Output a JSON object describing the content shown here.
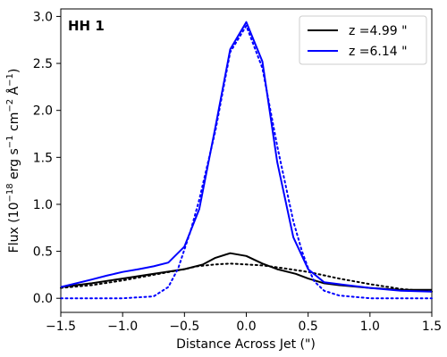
{
  "chart_data": {
    "type": "line",
    "panel_label": "HH 1",
    "xlabel": "Distance Across Jet (\")",
    "ylabel": {
      "main": "Flux (10",
      "exp1": "−18",
      "mid1": " erg s",
      "exp2": "−1",
      "mid2": " cm",
      "exp3": "−2",
      "mid3": " Å",
      "exp4": "−1",
      "end": ")"
    },
    "xlim": [
      -1.5,
      1.5
    ],
    "ylim": [
      -0.15,
      3.08
    ],
    "xticks": [
      -1.5,
      -1.0,
      -0.5,
      0.0,
      0.5,
      1.0,
      1.5
    ],
    "xtick_labels": [
      "−1.5",
      "−1.0",
      "−0.5",
      "0.0",
      "0.5",
      "1.0",
      "1.5"
    ],
    "yticks": [
      0.0,
      0.5,
      1.0,
      1.5,
      2.0,
      2.5,
      3.0
    ],
    "ytick_labels": [
      "0.0",
      "0.5",
      "1.0",
      "1.5",
      "2.0",
      "2.5",
      "3.0"
    ],
    "grid": false,
    "legend_position": "top-right",
    "series": [
      {
        "name": "z =4.99 \"",
        "color": "#000000",
        "style": "solid",
        "x": [
          -1.5,
          -1.25,
          -1.0,
          -0.9,
          -0.8,
          -0.65,
          -0.5,
          -0.35,
          -0.25,
          -0.13,
          0.0,
          0.13,
          0.25,
          0.4,
          0.5,
          0.63,
          0.75,
          1.0,
          1.25,
          1.5
        ],
        "y": [
          0.12,
          0.16,
          0.21,
          0.23,
          0.25,
          0.28,
          0.31,
          0.36,
          0.43,
          0.48,
          0.45,
          0.37,
          0.31,
          0.26,
          0.21,
          0.16,
          0.14,
          0.11,
          0.09,
          0.09
        ]
      },
      {
        "name": "",
        "color": "#000000",
        "style": "dotted",
        "x": [
          -1.5,
          -1.25,
          -1.0,
          -0.75,
          -0.5,
          -0.4,
          -0.25,
          -0.13,
          0.0,
          0.13,
          0.25,
          0.5,
          0.75,
          1.0,
          1.25,
          1.5
        ],
        "y": [
          0.11,
          0.14,
          0.19,
          0.25,
          0.31,
          0.34,
          0.36,
          0.37,
          0.36,
          0.35,
          0.33,
          0.28,
          0.21,
          0.15,
          0.1,
          0.07
        ]
      },
      {
        "name": "z =6.14 \"",
        "color": "#0000ff",
        "style": "solid",
        "x": [
          -1.5,
          -1.25,
          -1.13,
          -1.0,
          -0.87,
          -0.75,
          -0.63,
          -0.5,
          -0.38,
          -0.25,
          -0.13,
          0.0,
          0.13,
          0.25,
          0.38,
          0.5,
          0.63,
          0.75,
          1.0,
          1.25,
          1.5
        ],
        "y": [
          0.12,
          0.2,
          0.24,
          0.28,
          0.31,
          0.34,
          0.38,
          0.55,
          0.95,
          1.82,
          2.65,
          2.94,
          2.52,
          1.45,
          0.65,
          0.31,
          0.17,
          0.15,
          0.11,
          0.08,
          0.07
        ]
      },
      {
        "name": "",
        "color": "#0000ff",
        "style": "dotted",
        "x": [
          -1.5,
          -1.25,
          -1.0,
          -0.75,
          -0.63,
          -0.55,
          -0.5,
          -0.45,
          -0.38,
          -0.25,
          -0.13,
          0.0,
          0.13,
          0.25,
          0.38,
          0.45,
          0.5,
          0.55,
          0.63,
          0.75,
          1.0,
          1.25,
          1.5
        ],
        "y": [
          0.0,
          0.0,
          0.0,
          0.02,
          0.12,
          0.32,
          0.52,
          0.72,
          1.05,
          1.78,
          2.62,
          2.9,
          2.45,
          1.62,
          0.82,
          0.5,
          0.32,
          0.18,
          0.08,
          0.03,
          0.0,
          0.0,
          0.0
        ]
      }
    ]
  }
}
